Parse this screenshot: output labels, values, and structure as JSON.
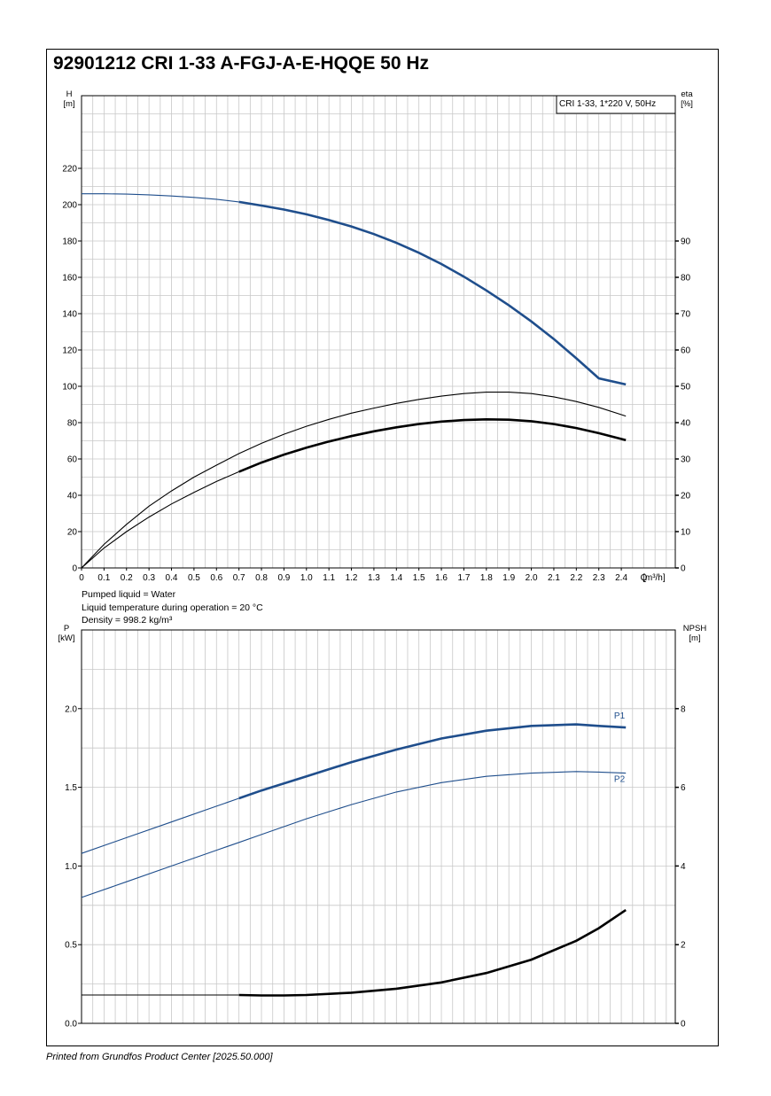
{
  "title": "92901212 CRI 1-33 A-FGJ-A-E-HQQE 50 Hz",
  "footer": "Printed from Grundfos Product Center [2025.50.000]",
  "liquid_info": [
    "Pumped liquid = Water",
    "Liquid temperature during operation = 20 °C",
    "Density = 998.2 kg/m³"
  ],
  "colors": {
    "curve_blue": "#1f4e8c",
    "curve_black": "#000000",
    "grid": "#c8c8c8"
  },
  "chart_data": [
    {
      "type": "line",
      "legend_box": "CRI 1-33, 1*220 V, 50Hz",
      "left_axis_label": [
        "H",
        "[m]"
      ],
      "right_axis_label": [
        "eta",
        "[%]"
      ],
      "x_axis_label": "Q [m³/h]",
      "xlim": [
        0,
        2.64
      ],
      "xticks": [
        0,
        0.1,
        0.2,
        0.3,
        0.4,
        0.5,
        0.6,
        0.7,
        0.8,
        0.9,
        1.0,
        1.1,
        1.2,
        1.3,
        1.4,
        1.5,
        1.6,
        1.7,
        1.8,
        1.9,
        2.0,
        2.1,
        2.2,
        2.3,
        2.4
      ],
      "xtick_labels": [
        "0",
        "0.1",
        "0.2",
        "0.3",
        "0.4",
        "0.5",
        "0.6",
        "0.7",
        "0.8",
        "0.9",
        "1.0",
        "1.1",
        "1.2",
        "1.3",
        "1.4",
        "1.5",
        "1.6",
        "1.7",
        "1.8",
        "1.9",
        "2.0",
        "2.1",
        "2.2",
        "2.3",
        "2.4"
      ],
      "ylim_left": [
        0,
        260
      ],
      "yticks_left": [
        0,
        20,
        40,
        60,
        80,
        100,
        120,
        140,
        160,
        180,
        200,
        220
      ],
      "ylim_right": [
        0,
        130
      ],
      "yticks_right": [
        0,
        10,
        20,
        30,
        40,
        50,
        60,
        70,
        80,
        90
      ],
      "grid": true,
      "series": [
        {
          "axis": "left",
          "color": "#1f4e8c",
          "bold_from": 0.7,
          "x": [
            0,
            0.1,
            0.2,
            0.3,
            0.4,
            0.5,
            0.6,
            0.7,
            0.8,
            0.9,
            1.0,
            1.1,
            1.2,
            1.3,
            1.4,
            1.5,
            1.6,
            1.7,
            1.8,
            1.9,
            2.0,
            2.1,
            2.2,
            2.3,
            2.42
          ],
          "y": [
            206,
            206,
            205.8,
            205.4,
            204.8,
            204,
            203,
            201.5,
            199.5,
            197.3,
            194.7,
            191.5,
            188,
            183.8,
            179,
            173.5,
            167.3,
            160.4,
            152.8,
            144.6,
            135.7,
            126,
            115.4,
            104.4,
            101
          ]
        },
        {
          "axis": "right",
          "color": "#000000",
          "bold_from": 99,
          "x": [
            0,
            0.1,
            0.2,
            0.3,
            0.4,
            0.5,
            0.6,
            0.7,
            0.8,
            0.9,
            1.0,
            1.1,
            1.2,
            1.3,
            1.4,
            1.5,
            1.6,
            1.7,
            1.8,
            1.9,
            2.0,
            2.1,
            2.2,
            2.3,
            2.42
          ],
          "y": [
            0,
            6.5,
            12,
            17,
            21.2,
            25,
            28.3,
            31.5,
            34.3,
            36.8,
            39,
            40.9,
            42.6,
            44,
            45.3,
            46.4,
            47.3,
            48,
            48.4,
            48.4,
            48,
            47.1,
            45.8,
            44.2,
            41.8
          ]
        },
        {
          "axis": "right",
          "color": "#000000",
          "bold_from": 0.7,
          "x": [
            0,
            0.1,
            0.2,
            0.3,
            0.4,
            0.5,
            0.6,
            0.7,
            0.8,
            0.9,
            1.0,
            1.1,
            1.2,
            1.3,
            1.4,
            1.5,
            1.6,
            1.7,
            1.8,
            1.9,
            2.0,
            2.1,
            2.2,
            2.3,
            2.42
          ],
          "y": [
            0,
            5.5,
            10,
            14,
            17.6,
            20.8,
            23.8,
            26.5,
            29,
            31.2,
            33.1,
            34.8,
            36.3,
            37.6,
            38.7,
            39.6,
            40.3,
            40.7,
            40.9,
            40.8,
            40.4,
            39.6,
            38.5,
            37.1,
            35.2
          ]
        }
      ]
    },
    {
      "type": "line",
      "left_axis_label": [
        "P",
        "[kW]"
      ],
      "right_axis_label": [
        "NPSH",
        "[m]"
      ],
      "xlim": [
        0,
        2.64
      ],
      "ylim_left": [
        0,
        2.5
      ],
      "yticks_left": [
        0.0,
        0.5,
        1.0,
        1.5,
        2.0
      ],
      "ytick_labels_left": [
        "0.0",
        "0.5",
        "1.0",
        "1.5",
        "2.0"
      ],
      "ylim_right": [
        0,
        10
      ],
      "yticks_right": [
        0,
        2,
        4,
        6,
        8
      ],
      "grid": true,
      "series": [
        {
          "name": "P1",
          "axis": "left",
          "color": "#1f4e8c",
          "bold_from": 0.7,
          "x": [
            0,
            0.2,
            0.4,
            0.6,
            0.7,
            0.8,
            1.0,
            1.2,
            1.4,
            1.6,
            1.8,
            2.0,
            2.2,
            2.3,
            2.42
          ],
          "y": [
            1.08,
            1.18,
            1.28,
            1.38,
            1.43,
            1.48,
            1.57,
            1.66,
            1.74,
            1.81,
            1.86,
            1.89,
            1.9,
            1.89,
            1.88
          ]
        },
        {
          "name": "P2",
          "axis": "left",
          "color": "#1f4e8c",
          "bold_from": 99,
          "x": [
            0,
            0.2,
            0.4,
            0.6,
            0.7,
            0.8,
            1.0,
            1.2,
            1.4,
            1.6,
            1.8,
            2.0,
            2.2,
            2.3,
            2.42
          ],
          "y": [
            0.8,
            0.9,
            1.0,
            1.1,
            1.15,
            1.2,
            1.3,
            1.39,
            1.47,
            1.53,
            1.57,
            1.59,
            1.6,
            1.597,
            1.59
          ]
        },
        {
          "name": "",
          "axis": "right",
          "color": "#000000",
          "bold_from": 0.7,
          "x": [
            0,
            0.7,
            0.8,
            0.9,
            1.0,
            1.2,
            1.4,
            1.6,
            1.8,
            2.0,
            2.2,
            2.3,
            2.42
          ],
          "y": [
            0.72,
            0.72,
            0.71,
            0.71,
            0.72,
            0.78,
            0.88,
            1.04,
            1.28,
            1.62,
            2.1,
            2.42,
            2.88
          ]
        }
      ]
    }
  ]
}
